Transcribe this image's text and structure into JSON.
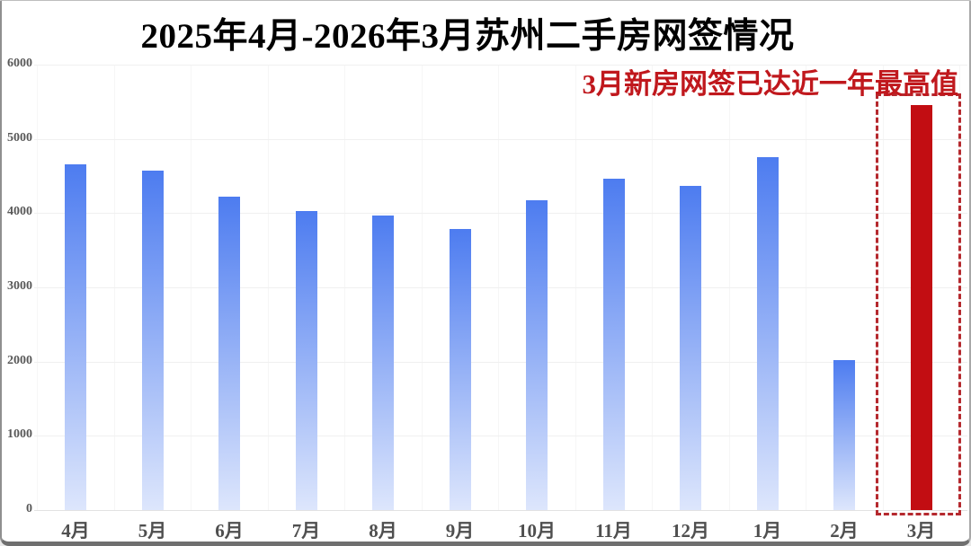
{
  "chart_data": {
    "type": "bar",
    "title": "2025年4月-2026年3月苏州二手房网签情况",
    "annotation": "3月新房网签已达近一年最高值",
    "categories": [
      "4月",
      "5月",
      "6月",
      "7月",
      "8月",
      "9月",
      "10月",
      "11月",
      "12月",
      "1月",
      "2月",
      "3月"
    ],
    "values": [
      4650,
      4570,
      4220,
      4030,
      3970,
      3790,
      4170,
      4460,
      4360,
      4750,
      2020,
      5460
    ],
    "highlight_index": 11,
    "highlight_category": "3月",
    "xlabel": "",
    "ylabel": "",
    "ylim": [
      0,
      6000
    ],
    "yticks": [
      0,
      1000,
      2000,
      3000,
      4000,
      5000,
      6000
    ],
    "grid": true,
    "legend_position": "none",
    "colors": {
      "bar_gradient_top": "#4d7cf0",
      "bar_gradient_bottom": "#dde6fc",
      "highlight_bar": "#c20d12",
      "highlight_box_border": "#b5292e",
      "annotation_text": "#c0181d",
      "title_text": "#000000",
      "axis_label": "#595959"
    }
  }
}
